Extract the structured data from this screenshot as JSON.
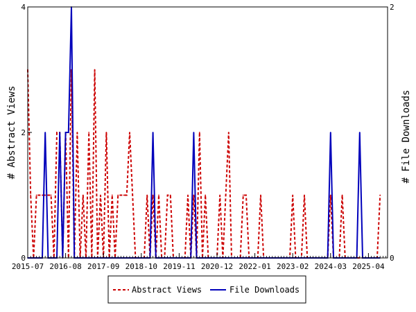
{
  "chart_data": {
    "type": "line",
    "ylabel_left": "# Abstract Views",
    "ylabel_right": "# File Downloads",
    "ylim_left": [
      0,
      4
    ],
    "ylim_right": [
      0,
      2
    ],
    "left_ticks": [
      "0",
      "2",
      "4"
    ],
    "right_ticks": [
      "0",
      "2"
    ],
    "x_ticks": [
      "2015-07",
      "2016-08",
      "2017-09",
      "2018-10",
      "2019-11",
      "2020-12",
      "2022-01",
      "2023-02",
      "2024-03",
      "2025-04"
    ],
    "x_start": "2015-07",
    "grid": false,
    "legend_position": "bottom-center",
    "series": [
      {
        "name": "Abstract Views",
        "axis": "left",
        "color": "#cc0000",
        "style": "dashed",
        "points": [
          [
            "2015-07",
            3
          ],
          [
            "2015-08",
            1
          ],
          [
            "2015-09",
            0
          ],
          [
            "2015-10",
            1
          ],
          [
            "2015-11",
            1
          ],
          [
            "2015-12",
            1
          ],
          [
            "2016-01",
            1
          ],
          [
            "2016-02",
            1
          ],
          [
            "2016-03",
            1
          ],
          [
            "2016-04",
            0
          ],
          [
            "2016-05",
            2
          ],
          [
            "2016-06",
            2
          ],
          [
            "2016-07",
            0
          ],
          [
            "2016-08",
            2
          ],
          [
            "2016-09",
            0
          ],
          [
            "2016-10",
            3
          ],
          [
            "2016-11",
            0
          ],
          [
            "2016-12",
            2
          ],
          [
            "2017-01",
            0
          ],
          [
            "2017-02",
            1
          ],
          [
            "2017-03",
            0
          ],
          [
            "2017-04",
            2
          ],
          [
            "2017-05",
            0
          ],
          [
            "2017-06",
            3
          ],
          [
            "2017-07",
            0
          ],
          [
            "2017-08",
            1
          ],
          [
            "2017-09",
            0
          ],
          [
            "2017-10",
            2
          ],
          [
            "2017-11",
            0
          ],
          [
            "2017-12",
            1
          ],
          [
            "2018-01",
            0
          ],
          [
            "2018-02",
            1
          ],
          [
            "2018-03",
            1
          ],
          [
            "2018-04",
            1
          ],
          [
            "2018-05",
            1
          ],
          [
            "2018-06",
            2
          ],
          [
            "2018-07",
            1
          ],
          [
            "2018-08",
            0
          ],
          [
            "2018-09",
            0
          ],
          [
            "2018-10",
            0
          ],
          [
            "2018-11",
            0
          ],
          [
            "2018-12",
            1
          ],
          [
            "2019-01",
            0
          ],
          [
            "2019-02",
            1
          ],
          [
            "2019-03",
            0
          ],
          [
            "2019-04",
            1
          ],
          [
            "2019-05",
            0
          ],
          [
            "2019-06",
            0
          ],
          [
            "2019-07",
            1
          ],
          [
            "2019-08",
            1
          ],
          [
            "2019-09",
            0
          ],
          [
            "2019-10",
            0
          ],
          [
            "2019-11",
            0
          ],
          [
            "2019-12",
            0
          ],
          [
            "2020-01",
            0
          ],
          [
            "2020-02",
            1
          ],
          [
            "2020-03",
            0
          ],
          [
            "2020-04",
            1
          ],
          [
            "2020-05",
            0
          ],
          [
            "2020-06",
            2
          ],
          [
            "2020-07",
            0
          ],
          [
            "2020-08",
            1
          ],
          [
            "2020-09",
            0
          ],
          [
            "2020-10",
            0
          ],
          [
            "2020-11",
            0
          ],
          [
            "2020-12",
            0
          ],
          [
            "2021-01",
            1
          ],
          [
            "2021-02",
            0
          ],
          [
            "2021-03",
            1
          ],
          [
            "2021-04",
            2
          ],
          [
            "2021-05",
            0
          ],
          [
            "2021-06",
            0
          ],
          [
            "2021-07",
            0
          ],
          [
            "2021-08",
            0
          ],
          [
            "2021-09",
            1
          ],
          [
            "2021-10",
            1
          ],
          [
            "2021-11",
            0
          ],
          [
            "2021-12",
            0
          ],
          [
            "2022-01",
            0
          ],
          [
            "2022-02",
            0
          ],
          [
            "2022-03",
            1
          ],
          [
            "2022-04",
            0
          ],
          [
            "2022-05",
            0
          ],
          [
            "2022-06",
            0
          ],
          [
            "2022-07",
            0
          ],
          [
            "2022-08",
            0
          ],
          [
            "2022-09",
            0
          ],
          [
            "2022-10",
            0
          ],
          [
            "2022-11",
            0
          ],
          [
            "2022-12",
            0
          ],
          [
            "2023-01",
            0
          ],
          [
            "2023-02",
            1
          ],
          [
            "2023-03",
            0
          ],
          [
            "2023-04",
            0
          ],
          [
            "2023-05",
            0
          ],
          [
            "2023-06",
            1
          ],
          [
            "2023-07",
            0
          ],
          [
            "2023-08",
            0
          ],
          [
            "2023-09",
            0
          ],
          [
            "2023-10",
            0
          ],
          [
            "2023-11",
            0
          ],
          [
            "2023-12",
            0
          ],
          [
            "2024-01",
            0
          ],
          [
            "2024-02",
            0
          ],
          [
            "2024-03",
            1
          ],
          [
            "2024-04",
            0
          ],
          [
            "2024-05",
            0
          ],
          [
            "2024-06",
            0
          ],
          [
            "2024-07",
            1
          ],
          [
            "2024-08",
            0
          ],
          [
            "2024-09",
            0
          ],
          [
            "2024-10",
            0
          ],
          [
            "2024-11",
            0
          ],
          [
            "2024-12",
            0
          ],
          [
            "2025-01",
            0
          ],
          [
            "2025-02",
            0
          ],
          [
            "2025-03",
            0
          ],
          [
            "2025-04",
            0
          ],
          [
            "2025-05",
            0
          ],
          [
            "2025-06",
            0
          ],
          [
            "2025-07",
            0
          ],
          [
            "2025-08",
            1
          ]
        ]
      },
      {
        "name": "File Downloads",
        "axis": "right",
        "color": "#0000bb",
        "style": "solid",
        "points": [
          [
            "2015-07",
            0
          ],
          [
            "2015-08",
            0
          ],
          [
            "2015-09",
            0
          ],
          [
            "2015-10",
            0
          ],
          [
            "2015-11",
            0
          ],
          [
            "2015-12",
            0
          ],
          [
            "2016-01",
            1
          ],
          [
            "2016-02",
            0
          ],
          [
            "2016-03",
            0
          ],
          [
            "2016-04",
            0
          ],
          [
            "2016-05",
            0
          ],
          [
            "2016-06",
            1
          ],
          [
            "2016-07",
            0
          ],
          [
            "2016-08",
            1
          ],
          [
            "2016-09",
            1
          ],
          [
            "2016-10",
            2
          ],
          [
            "2016-11",
            0
          ],
          [
            "2016-12",
            0
          ],
          [
            "2017-01",
            0
          ],
          [
            "2017-02",
            0
          ],
          [
            "2017-03",
            0
          ],
          [
            "2017-04",
            0
          ],
          [
            "2017-05",
            0
          ],
          [
            "2017-06",
            0
          ],
          [
            "2017-07",
            0
          ],
          [
            "2017-08",
            0
          ],
          [
            "2017-09",
            0
          ],
          [
            "2017-10",
            0
          ],
          [
            "2017-11",
            0
          ],
          [
            "2017-12",
            0
          ],
          [
            "2018-01",
            0
          ],
          [
            "2018-02",
            0
          ],
          [
            "2018-03",
            0
          ],
          [
            "2018-04",
            0
          ],
          [
            "2018-05",
            0
          ],
          [
            "2018-06",
            0
          ],
          [
            "2018-07",
            0
          ],
          [
            "2018-08",
            0
          ],
          [
            "2018-09",
            0
          ],
          [
            "2018-10",
            0
          ],
          [
            "2018-11",
            0
          ],
          [
            "2018-12",
            0
          ],
          [
            "2019-01",
            0
          ],
          [
            "2019-02",
            1
          ],
          [
            "2019-03",
            0
          ],
          [
            "2019-04",
            0
          ],
          [
            "2019-05",
            0
          ],
          [
            "2019-06",
            0
          ],
          [
            "2019-07",
            0
          ],
          [
            "2019-08",
            0
          ],
          [
            "2019-09",
            0
          ],
          [
            "2019-10",
            0
          ],
          [
            "2019-11",
            0
          ],
          [
            "2019-12",
            0
          ],
          [
            "2020-01",
            0
          ],
          [
            "2020-02",
            0
          ],
          [
            "2020-03",
            0
          ],
          [
            "2020-04",
            1
          ],
          [
            "2020-05",
            0
          ],
          [
            "2020-06",
            0
          ],
          [
            "2020-07",
            0
          ],
          [
            "2020-08",
            0
          ],
          [
            "2020-09",
            0
          ],
          [
            "2020-10",
            0
          ],
          [
            "2020-11",
            0
          ],
          [
            "2020-12",
            0
          ],
          [
            "2021-01",
            0
          ],
          [
            "2021-02",
            0
          ],
          [
            "2021-03",
            0
          ],
          [
            "2021-04",
            0
          ],
          [
            "2021-05",
            0
          ],
          [
            "2021-06",
            0
          ],
          [
            "2021-07",
            0
          ],
          [
            "2021-08",
            0
          ],
          [
            "2021-09",
            0
          ],
          [
            "2021-10",
            0
          ],
          [
            "2021-11",
            0
          ],
          [
            "2021-12",
            0
          ],
          [
            "2022-01",
            0
          ],
          [
            "2022-02",
            0
          ],
          [
            "2022-03",
            0
          ],
          [
            "2022-04",
            0
          ],
          [
            "2022-05",
            0
          ],
          [
            "2022-06",
            0
          ],
          [
            "2022-07",
            0
          ],
          [
            "2022-08",
            0
          ],
          [
            "2022-09",
            0
          ],
          [
            "2022-10",
            0
          ],
          [
            "2022-11",
            0
          ],
          [
            "2022-12",
            0
          ],
          [
            "2023-01",
            0
          ],
          [
            "2023-02",
            0
          ],
          [
            "2023-03",
            0
          ],
          [
            "2023-04",
            0
          ],
          [
            "2023-05",
            0
          ],
          [
            "2023-06",
            0
          ],
          [
            "2023-07",
            0
          ],
          [
            "2023-08",
            0
          ],
          [
            "2023-09",
            0
          ],
          [
            "2023-10",
            0
          ],
          [
            "2023-11",
            0
          ],
          [
            "2023-12",
            0
          ],
          [
            "2024-01",
            0
          ],
          [
            "2024-02",
            0
          ],
          [
            "2024-03",
            1
          ],
          [
            "2024-04",
            0
          ],
          [
            "2024-05",
            0
          ],
          [
            "2024-06",
            0
          ],
          [
            "2024-07",
            0
          ],
          [
            "2024-08",
            0
          ],
          [
            "2024-09",
            0
          ],
          [
            "2024-10",
            0
          ],
          [
            "2024-11",
            0
          ],
          [
            "2024-12",
            0
          ],
          [
            "2025-01",
            1
          ],
          [
            "2025-02",
            0
          ],
          [
            "2025-03",
            0
          ],
          [
            "2025-04",
            0
          ],
          [
            "2025-05",
            0
          ],
          [
            "2025-06",
            0
          ],
          [
            "2025-07",
            0
          ],
          [
            "2025-08",
            0
          ]
        ]
      }
    ]
  }
}
